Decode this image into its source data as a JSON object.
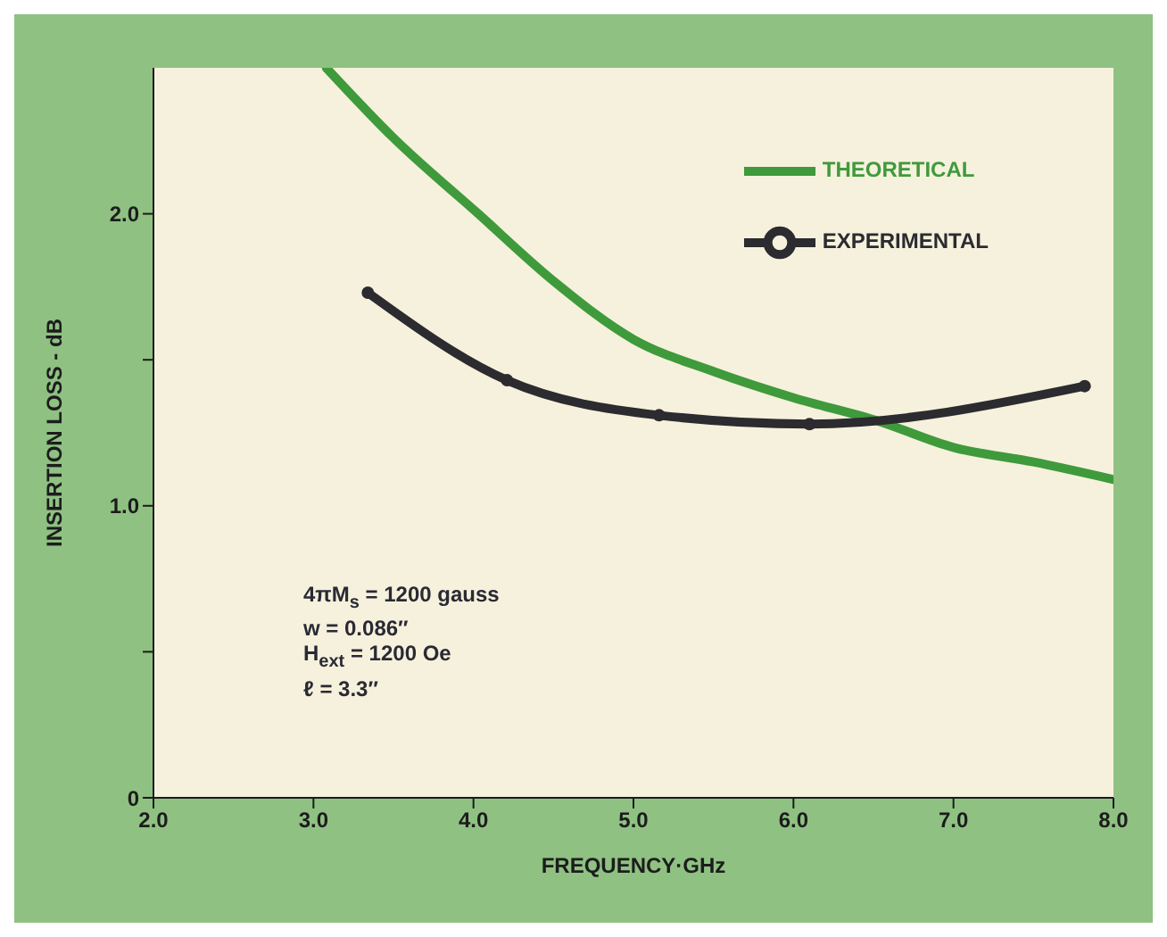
{
  "chart_data": {
    "type": "line",
    "xlabel": "FREQUENCY·GHz",
    "ylabel": "INSERTION LOSS - dB",
    "xlim": [
      2,
      8
    ],
    "ylim": [
      0,
      2.5
    ],
    "xticks": [
      {
        "value": 2,
        "label": "2.0"
      },
      {
        "value": 3,
        "label": "3.0"
      },
      {
        "value": 4,
        "label": "4.0"
      },
      {
        "value": 5,
        "label": "5.0"
      },
      {
        "value": 6,
        "label": "6.0"
      },
      {
        "value": 7,
        "label": "7.0"
      },
      {
        "value": 8,
        "label": "8.0"
      }
    ],
    "yticks": [
      0,
      {
        "value": 0.5,
        "label": null
      },
      {
        "value": 1,
        "label": "1.0"
      },
      {
        "value": 1.5,
        "label": null
      },
      {
        "value": 2,
        "label": "2.0"
      }
    ],
    "legend": "top right",
    "line_style": "solid",
    "series": [
      {
        "name": "THEORETICAL",
        "color": "#3f9a3c",
        "marker": "none",
        "x": [
          3.08,
          3.5,
          4.03,
          4.5,
          5.0,
          5.5,
          6.0,
          6.53,
          7.0,
          7.5,
          8.0
        ],
        "values": [
          2.5,
          2.26,
          2.0,
          1.77,
          1.57,
          1.46,
          1.37,
          1.29,
          1.2,
          1.15,
          1.09
        ]
      },
      {
        "name": "EXPERIMENTAL",
        "color": "#2b2b30",
        "marker": "circle",
        "x": [
          3.34,
          4.21,
          5.16,
          6.1,
          7.82
        ],
        "values": [
          1.73,
          1.43,
          1.31,
          1.28,
          1.41
        ]
      }
    ],
    "annotations": [
      "4πM$_{s}$ = 1200 gauss",
      "w = 0.086″",
      "H$_{ext}$ = 1200  Oe",
      "ℓ = 3.3″"
    ]
  }
}
